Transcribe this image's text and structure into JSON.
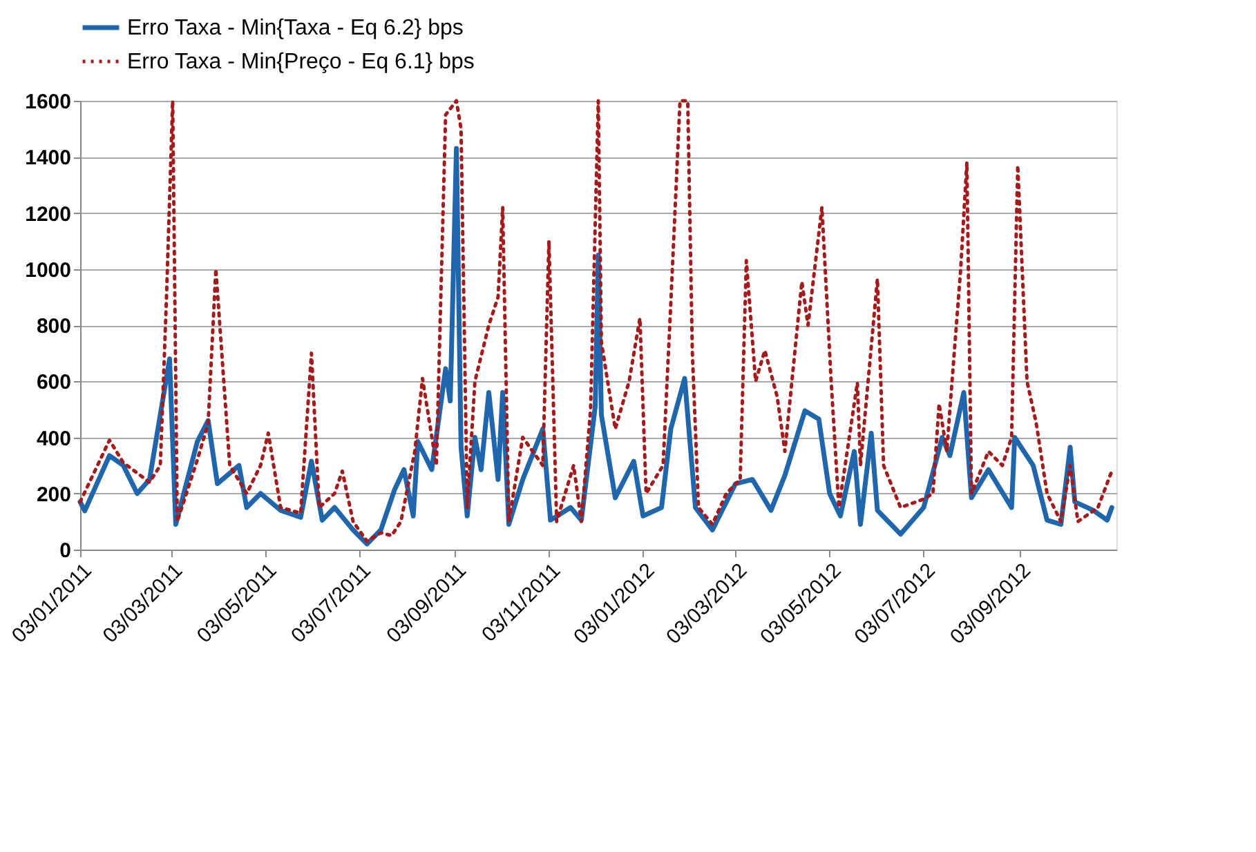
{
  "chart_data": {
    "type": "line",
    "xlim": [
      "2011-01-03",
      "2012-11-05"
    ],
    "xticks": [
      {
        "value": "2011-01-03",
        "label": "03/01/2011"
      },
      {
        "value": "2011-03-03",
        "label": "03/03/2011"
      },
      {
        "value": "2011-05-03",
        "label": "03/05/2011"
      },
      {
        "value": "2011-07-03",
        "label": "03/07/2011"
      },
      {
        "value": "2011-09-03",
        "label": "03/09/2011"
      },
      {
        "value": "2011-11-03",
        "label": "03/11/2011"
      },
      {
        "value": "2012-01-03",
        "label": "03/01/2012"
      },
      {
        "value": "2012-03-03",
        "label": "03/03/2012"
      },
      {
        "value": "2012-05-03",
        "label": "03/05/2012"
      },
      {
        "value": "2012-07-03",
        "label": "03/07/2012"
      },
      {
        "value": "2012-09-03",
        "label": "03/09/2012"
      }
    ],
    "ylim": [
      0,
      1600
    ],
    "yticks": [
      0,
      200,
      400,
      600,
      800,
      1000,
      1200,
      1400,
      1600
    ],
    "grid": "y",
    "legend": "top",
    "marker": "none",
    "series": [
      {
        "name": "Erro Taxa - Min{Taxa - Eq 6.2} bps",
        "color": "#2066ad",
        "line_style": "solid",
        "x": [
          "2011-01-03",
          "2011-01-06",
          "2011-01-22",
          "2011-01-31",
          "2011-02-09",
          "2011-02-17",
          "2011-03-02",
          "2011-03-06",
          "2011-03-20",
          "2011-03-27",
          "2011-04-02",
          "2011-04-16",
          "2011-04-21",
          "2011-04-30",
          "2011-05-13",
          "2011-05-26",
          "2011-06-02",
          "2011-06-09",
          "2011-06-17",
          "2011-06-29",
          "2011-07-08",
          "2011-07-17",
          "2011-07-26",
          "2011-08-01",
          "2011-08-07",
          "2011-08-10",
          "2011-08-19",
          "2011-08-28",
          "2011-08-31",
          "2011-09-04",
          "2011-09-07",
          "2011-09-11",
          "2011-09-16",
          "2011-09-20",
          "2011-09-25",
          "2011-10-01",
          "2011-10-04",
          "2011-10-08",
          "2011-10-17",
          "2011-10-30",
          "2011-11-04",
          "2011-11-17",
          "2011-11-24",
          "2011-12-03",
          "2011-12-05",
          "2011-12-07",
          "2011-12-16",
          "2011-12-28",
          "2012-01-03",
          "2012-01-15",
          "2012-01-21",
          "2012-01-30",
          "2012-02-06",
          "2012-02-17",
          "2012-03-03",
          "2012-03-14",
          "2012-03-26",
          "2012-04-04",
          "2012-04-17",
          "2012-04-26",
          "2012-05-03",
          "2012-05-10",
          "2012-05-19",
          "2012-05-23",
          "2012-05-30",
          "2012-06-03",
          "2012-06-18",
          "2012-07-03",
          "2012-07-15",
          "2012-07-20",
          "2012-07-29",
          "2012-08-03",
          "2012-08-14",
          "2012-08-29",
          "2012-08-31",
          "2012-09-12",
          "2012-09-21",
          "2012-09-30",
          "2012-10-06",
          "2012-10-09",
          "2012-10-21",
          "2012-10-30",
          "2012-11-02"
        ],
        "values": [
          170,
          138,
          335,
          300,
          200,
          250,
          680,
          90,
          385,
          460,
          235,
          300,
          150,
          200,
          140,
          115,
          315,
          105,
          150,
          70,
          20,
          70,
          215,
          285,
          120,
          385,
          285,
          645,
          530,
          1430,
          365,
          120,
          400,
          285,
          560,
          250,
          560,
          90,
          250,
          430,
          105,
          150,
          105,
          510,
          1050,
          480,
          185,
          315,
          120,
          150,
          430,
          610,
          150,
          70,
          235,
          250,
          140,
          265,
          495,
          465,
          200,
          120,
          350,
          90,
          415,
          140,
          55,
          150,
          400,
          335,
          560,
          185,
          285,
          150,
          400,
          300,
          105,
          90,
          365,
          170,
          140,
          105,
          150
        ]
      },
      {
        "name": "Erro Taxa - Min{Preço - Eq 6.1} bps",
        "color": "#a51b1b",
        "line_style": "dotted",
        "x": [
          "2011-01-03",
          "2011-01-22",
          "2011-01-31",
          "2011-02-17",
          "2011-02-24",
          "2011-02-28",
          "2011-03-04",
          "2011-03-07",
          "2011-03-20",
          "2011-03-27",
          "2011-04-01",
          "2011-04-10",
          "2011-04-21",
          "2011-04-30",
          "2011-05-05",
          "2011-05-13",
          "2011-05-26",
          "2011-06-02",
          "2011-06-07",
          "2011-06-17",
          "2011-06-22",
          "2011-06-29",
          "2011-07-08",
          "2011-07-17",
          "2011-07-24",
          "2011-07-30",
          "2011-08-08",
          "2011-08-13",
          "2011-08-22",
          "2011-08-28",
          "2011-09-04",
          "2011-09-07",
          "2011-09-11",
          "2011-09-16",
          "2011-09-25",
          "2011-10-01",
          "2011-10-04",
          "2011-10-08",
          "2011-10-17",
          "2011-10-30",
          "2011-11-03",
          "2011-11-08",
          "2011-11-19",
          "2011-11-24",
          "2011-11-30",
          "2011-12-05",
          "2011-12-07",
          "2011-12-16",
          "2011-12-25",
          "2012-01-01",
          "2012-01-05",
          "2012-01-16",
          "2012-01-21",
          "2012-01-27",
          "2012-02-01",
          "2012-02-04",
          "2012-02-08",
          "2012-02-17",
          "2012-02-26",
          "2012-03-06",
          "2012-03-10",
          "2012-03-16",
          "2012-03-22",
          "2012-03-30",
          "2012-04-04",
          "2012-04-15",
          "2012-04-19",
          "2012-04-28",
          "2012-05-04",
          "2012-05-09",
          "2012-05-21",
          "2012-05-23",
          "2012-06-03",
          "2012-06-07",
          "2012-06-18",
          "2012-07-03",
          "2012-07-09",
          "2012-07-13",
          "2012-07-18",
          "2012-07-20",
          "2012-07-27",
          "2012-07-31",
          "2012-08-03",
          "2012-08-14",
          "2012-08-23",
          "2012-08-29",
          "2012-09-02",
          "2012-09-08",
          "2012-09-14",
          "2012-09-21",
          "2012-09-30",
          "2012-10-06",
          "2012-10-11",
          "2012-10-24",
          "2012-11-02"
        ],
        "values": [
          170,
          390,
          310,
          240,
          300,
          900,
          1600,
          100,
          320,
          450,
          1000,
          300,
          200,
          300,
          415,
          150,
          130,
          700,
          150,
          200,
          280,
          100,
          30,
          60,
          50,
          100,
          350,
          610,
          300,
          1550,
          1600,
          1500,
          150,
          600,
          800,
          900,
          1220,
          100,
          400,
          300,
          1100,
          100,
          300,
          100,
          500,
          1600,
          740,
          430,
          600,
          825,
          200,
          300,
          875,
          1600,
          1600,
          700,
          150,
          90,
          200,
          250,
          1030,
          600,
          710,
          545,
          350,
          955,
          800,
          1220,
          600,
          150,
          595,
          300,
          965,
          300,
          150,
          180,
          200,
          520,
          350,
          500,
          1000,
          1380,
          200,
          350,
          300,
          400,
          1370,
          600,
          450,
          200,
          100,
          300,
          100,
          150,
          280
        ]
      }
    ]
  }
}
